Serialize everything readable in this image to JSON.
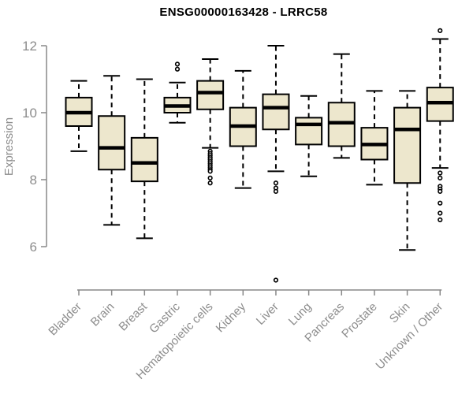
{
  "chart_data": {
    "type": "boxplot",
    "title": "ENSG00000163428 - LRRC58",
    "ylabel": "Expression",
    "xlabel": "",
    "yticks": [
      6,
      8,
      10,
      12
    ],
    "y_axis_range": [
      6,
      12
    ],
    "ylim_drawn": [
      5.0,
      12.45
    ],
    "grid": false,
    "legend": "none",
    "colors": {
      "box_fill": "#EDE7CD",
      "box_stroke": "#000000",
      "median_stroke": "#000000",
      "whisker_stroke": "#000000",
      "outlier_stroke": "#000000",
      "axis_line": "#888888",
      "axis_text": "#8C8C8C",
      "title_text": "#000000"
    },
    "categories": [
      "Bladder",
      "Brain",
      "Breast",
      "Gastric",
      "Hematopoietic cells",
      "Kidney",
      "Liver",
      "Lung",
      "Pancreas",
      "Prostate",
      "Skin",
      "Unknown / Other"
    ],
    "boxes": [
      {
        "category": "Bladder",
        "whisker_low": 8.85,
        "q1": 9.6,
        "median": 10.0,
        "q3": 10.45,
        "whisker_high": 10.95,
        "outliers": []
      },
      {
        "category": "Brain",
        "whisker_low": 6.65,
        "q1": 8.3,
        "median": 8.95,
        "q3": 9.9,
        "whisker_high": 11.1,
        "outliers": []
      },
      {
        "category": "Breast",
        "whisker_low": 6.25,
        "q1": 7.95,
        "median": 8.5,
        "q3": 9.25,
        "whisker_high": 11.0,
        "outliers": []
      },
      {
        "category": "Gastric",
        "whisker_low": 9.7,
        "q1": 10.0,
        "median": 10.2,
        "q3": 10.45,
        "whisker_high": 10.9,
        "outliers": [
          11.3,
          11.45
        ]
      },
      {
        "category": "Hematopoietic cells",
        "whisker_low": 8.95,
        "q1": 10.1,
        "median": 10.6,
        "q3": 10.95,
        "whisker_high": 11.6,
        "outliers": [
          8.85,
          8.78,
          8.72,
          8.66,
          8.6,
          8.54,
          8.48,
          8.42,
          8.36,
          8.3,
          8.25,
          8.05,
          7.9
        ]
      },
      {
        "category": "Kidney",
        "whisker_low": 7.75,
        "q1": 9.0,
        "median": 9.6,
        "q3": 10.15,
        "whisker_high": 11.25,
        "outliers": []
      },
      {
        "category": "Liver",
        "whisker_low": 8.25,
        "q1": 9.5,
        "median": 10.15,
        "q3": 10.55,
        "whisker_high": 12.0,
        "outliers": [
          7.9,
          7.75,
          7.65,
          5.0
        ]
      },
      {
        "category": "Lung",
        "whisker_low": 8.1,
        "q1": 9.05,
        "median": 9.65,
        "q3": 9.85,
        "whisker_high": 10.5,
        "outliers": []
      },
      {
        "category": "Pancreas",
        "whisker_low": 8.65,
        "q1": 9.0,
        "median": 9.7,
        "q3": 10.3,
        "whisker_high": 11.75,
        "outliers": []
      },
      {
        "category": "Prostate",
        "whisker_low": 7.85,
        "q1": 8.6,
        "median": 9.05,
        "q3": 9.55,
        "whisker_high": 10.65,
        "outliers": []
      },
      {
        "category": "Skin",
        "whisker_low": 5.9,
        "q1": 7.9,
        "median": 9.5,
        "q3": 10.15,
        "whisker_high": 10.65,
        "outliers": []
      },
      {
        "category": "Unknown / Other",
        "whisker_low": 8.35,
        "q1": 9.75,
        "median": 10.3,
        "q3": 10.75,
        "whisker_high": 12.2,
        "outliers": [
          12.45,
          8.2,
          8.05,
          7.8,
          7.72,
          7.65,
          7.3,
          7.0,
          6.8
        ]
      }
    ]
  }
}
